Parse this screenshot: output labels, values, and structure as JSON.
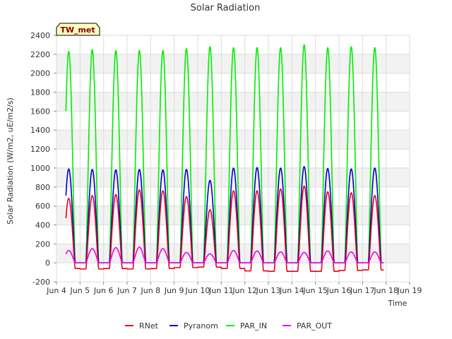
{
  "chart_data": {
    "type": "line",
    "title": "Solar Radiation",
    "xlabel": "Time",
    "ylabel": "Solar Radiation (W/m2, uE/m2/s)",
    "badge": "TW_met",
    "ylim": [
      -200,
      2400
    ],
    "yticks": [
      -200,
      0,
      200,
      400,
      600,
      800,
      1000,
      1200,
      1400,
      1600,
      1800,
      2000,
      2200,
      2400
    ],
    "xlim": [
      4,
      19
    ],
    "xtick_values": [
      4,
      5,
      6,
      7,
      8,
      9,
      10,
      11,
      12,
      13,
      14,
      15,
      16,
      17,
      18,
      19
    ],
    "xtick_labels": [
      "Jun 4",
      "Jun 5",
      "Jun 6",
      "Jun 7",
      "Jun 8",
      "Jun 9",
      "Jun 10",
      "Jun 11",
      "Jun 12",
      "Jun 13",
      "Jun 14",
      "Jun 15",
      "Jun 16",
      "Jun 17",
      "Jun 18",
      "Jun 19"
    ],
    "grid": true,
    "legend_position": "bottom",
    "day_start": 4.4,
    "day_end": 17.9,
    "days": [
      4,
      5,
      6,
      7,
      8,
      9,
      10,
      11,
      12,
      13,
      14,
      15,
      16,
      17
    ],
    "series": [
      {
        "name": "RNet",
        "color": "#e8001c",
        "noon_peaks": [
          680,
          710,
          720,
          770,
          760,
          700,
          560,
          760,
          760,
          780,
          810,
          750,
          740,
          710
        ],
        "night_values": [
          -60,
          -65,
          -60,
          -65,
          -60,
          -50,
          -45,
          -60,
          -85,
          -90,
          -90,
          -90,
          -80,
          -75
        ]
      },
      {
        "name": "Pyranom",
        "color": "#0000cd",
        "noon_peaks": [
          990,
          985,
          980,
          985,
          980,
          985,
          870,
          1000,
          1005,
          1000,
          1015,
          995,
          990,
          1000
        ],
        "night_values": [
          0,
          0,
          0,
          0,
          0,
          0,
          0,
          0,
          0,
          0,
          0,
          0,
          0,
          0
        ]
      },
      {
        "name": "PAR_IN",
        "color": "#00ee00",
        "noon_peaks": [
          2230,
          2250,
          2240,
          2240,
          2240,
          2260,
          2280,
          2270,
          2270,
          2270,
          2300,
          2270,
          2280,
          2270
        ],
        "night_values": [
          0,
          0,
          0,
          0,
          0,
          0,
          0,
          0,
          0,
          0,
          0,
          0,
          0,
          0
        ]
      },
      {
        "name": "PAR_OUT",
        "color": "#ee00ee",
        "noon_peaks": [
          130,
          150,
          160,
          165,
          150,
          110,
          95,
          130,
          125,
          115,
          110,
          125,
          115,
          115
        ],
        "night_values": [
          0,
          0,
          0,
          0,
          0,
          0,
          0,
          0,
          0,
          0,
          0,
          0,
          0,
          0
        ]
      }
    ]
  }
}
